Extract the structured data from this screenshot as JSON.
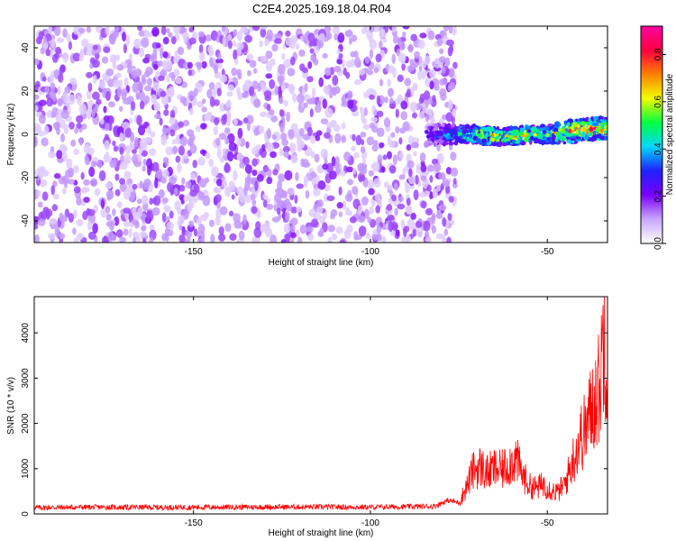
{
  "title": "C2E4.2025.169.18.04.R04",
  "chart_data": [
    {
      "type": "heatmap",
      "title": "C2E4.2025.169.18.04.R04",
      "xlabel": "Height of straight line (km)",
      "ylabel": "Frequency (Hz)",
      "xlim": [
        -195,
        -33
      ],
      "ylim": [
        -50,
        50
      ],
      "x_ticks": [
        "-150",
        "-100",
        "-50"
      ],
      "y_ticks": [
        "-40",
        "-20",
        "0",
        "20",
        "40"
      ],
      "colorbar": {
        "label": "Normalized spectral amplitude",
        "range": [
          0,
          0.92
        ],
        "ticks": [
          "0.0",
          "0.2",
          "0.4",
          "0.6",
          "0.8"
        ],
        "colormap": [
          "#ffffff",
          "#c9a6ff",
          "#7a00ff",
          "#2020ff",
          "#00d8ff",
          "#00ff40",
          "#f0ff00",
          "#ff7f00",
          "#ff0040",
          "#ff00a0"
        ]
      },
      "noise_region_x": [
        -195,
        -78
      ],
      "signal_band": {
        "x": [
          -84,
          -75,
          -70,
          -65,
          -60,
          -55,
          -50,
          -45,
          -40,
          -35,
          -33
        ],
        "frequency_center": [
          0,
          0,
          0,
          -1,
          -1,
          0,
          0,
          1,
          2,
          3,
          3
        ],
        "frequency_width": [
          5,
          4,
          4,
          4,
          4,
          4,
          4,
          5,
          5,
          5,
          5
        ],
        "peak_amplitude": [
          0.3,
          0.55,
          0.7,
          0.8,
          0.75,
          0.75,
          0.6,
          0.8,
          0.85,
          0.9,
          0.85
        ]
      },
      "grid": false
    },
    {
      "type": "line",
      "xlabel": "Height of straight line (km)",
      "ylabel": "SNR (10 * v/v)",
      "xlim": [
        -195,
        -33
      ],
      "ylim": [
        0,
        4800
      ],
      "x_ticks": [
        "-150",
        "-100",
        "-50"
      ],
      "y_ticks": [
        "0",
        "1000",
        "2000",
        "3000",
        "4000"
      ],
      "series": [
        {
          "color": "#ff0000",
          "x": [
            -195,
            -180,
            -160,
            -140,
            -120,
            -100,
            -90,
            -82,
            -78,
            -75,
            -73,
            -71,
            -69,
            -67,
            -65,
            -63,
            -61,
            -59,
            -57,
            -55,
            -53,
            -51,
            -49,
            -47,
            -45,
            -43,
            -41,
            -39,
            -37,
            -35,
            -34,
            -33
          ],
          "y": [
            140,
            150,
            145,
            150,
            155,
            150,
            160,
            170,
            300,
            250,
            600,
            1000,
            1100,
            950,
            1050,
            1000,
            1150,
            1300,
            900,
            650,
            600,
            700,
            550,
            500,
            700,
            1200,
            1700,
            2000,
            2600,
            3000,
            4500,
            3200
          ]
        }
      ],
      "grid": false
    }
  ]
}
